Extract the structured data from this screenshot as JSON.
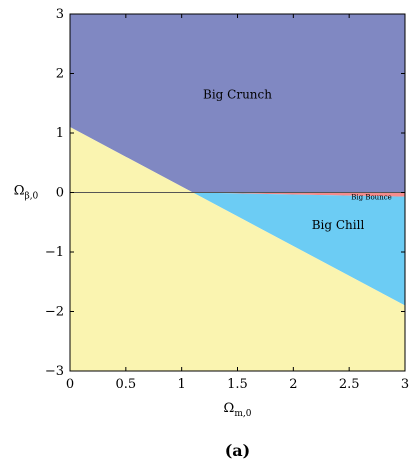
{
  "chart_data": {
    "type": "area",
    "title": "",
    "xlabel": "Ω_{m,0}",
    "ylabel": "Ω_{β,0}",
    "xlim": [
      0,
      3
    ],
    "ylim": [
      -3,
      3
    ],
    "xticks": [
      0,
      0.5,
      1,
      1.5,
      2,
      2.5,
      3
    ],
    "xtick_labels": [
      "0",
      "0.5",
      "1",
      "1.5",
      "2",
      "2.5",
      "3"
    ],
    "yticks": [
      -3,
      -2,
      -1,
      0,
      1,
      2,
      3
    ],
    "ytick_labels": [
      "−3",
      "−2",
      "−1",
      "0",
      "1",
      "2",
      "3"
    ],
    "grid": false,
    "reference_line_y": 0,
    "regions": [
      {
        "name": "Big Crunch",
        "color": "#8088c2",
        "label_text_color": "#ffffff",
        "polygon": [
          [
            0,
            3
          ],
          [
            3,
            3
          ],
          [
            3,
            0
          ],
          [
            1.1,
            0
          ],
          [
            0,
            1.1
          ]
        ]
      },
      {
        "name": "Big Bounce",
        "color": "#f58c8c",
        "label_text_color": "#ffffff",
        "polygon": [
          [
            1.1,
            0
          ],
          [
            3,
            0
          ],
          [
            3,
            -0.07
          ]
        ]
      },
      {
        "name": "Big Chill",
        "color": "#6cccf4",
        "label_text_color": "#000000",
        "polygon": [
          [
            1.1,
            0
          ],
          [
            3,
            -0.07
          ],
          [
            3,
            -1.9
          ]
        ]
      },
      {
        "name": "",
        "color": "#faf4b0",
        "label_text_color": "#000000",
        "polygon": [
          [
            0,
            1.1
          ],
          [
            1.1,
            0
          ],
          [
            3,
            -1.9
          ],
          [
            3,
            -3
          ],
          [
            0,
            -3
          ]
        ]
      }
    ],
    "annotations": [
      {
        "text": "Big Crunch",
        "x": 1.5,
        "y": 1.65,
        "color": "#ffffff",
        "size": "medium"
      },
      {
        "text": "Big Bounce",
        "x": 2.7,
        "y": -0.05,
        "color": "#ffffff",
        "size": "tiny"
      },
      {
        "text": "Big Chill",
        "x": 2.4,
        "y": -0.55,
        "color": "#000000",
        "size": "medium"
      }
    ]
  },
  "caption": "(a)"
}
